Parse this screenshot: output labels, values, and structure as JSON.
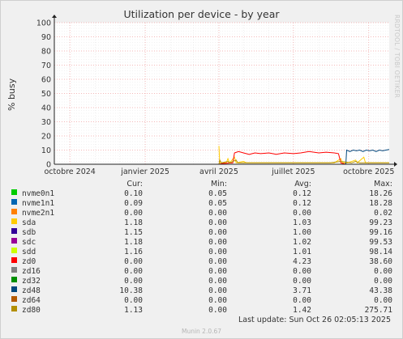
{
  "title": "Utilization per device - by year",
  "ylabel": "% busy",
  "watermark": "RRDTOOL / TOBI OETIKER",
  "footer": "Munin 2.0.67",
  "last_update": "Last update: Sun Oct 26 02:05:13 2025",
  "legend_headers": {
    "cur": "Cur:",
    "min": "Min:",
    "avg": "Avg:",
    "max": "Max:"
  },
  "chart_data": {
    "type": "line",
    "title": "Utilization per device - by year",
    "ylabel": "% busy",
    "xlabel": "",
    "ylim": [
      0,
      100
    ],
    "yticks": [
      0,
      10,
      20,
      30,
      40,
      50,
      60,
      70,
      80,
      90,
      100
    ],
    "xlim": [
      "2024-09-12",
      "2025-10-26"
    ],
    "xticks": [
      {
        "label": "octobre 2024",
        "date": "2024-10-01"
      },
      {
        "label": "janvier 2025",
        "date": "2025-01-01"
      },
      {
        "label": "avril 2025",
        "date": "2025-04-01"
      },
      {
        "label": "juillet 2025",
        "date": "2025-07-01"
      },
      {
        "label": "octobre 2025",
        "date": "2025-10-01"
      }
    ],
    "grid": true,
    "series": [
      {
        "name": "nvme0n1",
        "color": "#00cc00",
        "cur": "0.10",
        "min": "0.05",
        "avg": "0.12",
        "max": "18.26",
        "points": []
      },
      {
        "name": "nvme1n1",
        "color": "#0066b3",
        "cur": "0.09",
        "min": "0.05",
        "avg": "0.12",
        "max": "18.28",
        "points": []
      },
      {
        "name": "nvme2n1",
        "color": "#ff8000",
        "cur": "0.00",
        "min": "0.00",
        "avg": "0.00",
        "max": "0.02",
        "points": []
      },
      {
        "name": "sda",
        "color": "#ffcc00",
        "cur": "1.18",
        "min": "0.00",
        "avg": "1.03",
        "max": "99.23",
        "points": [
          [
            "2025-04-01",
            13
          ],
          [
            "2025-04-02",
            1
          ],
          [
            "2025-04-10",
            1
          ],
          [
            "2025-04-12",
            4
          ],
          [
            "2025-04-14",
            1
          ],
          [
            "2025-04-20",
            5
          ],
          [
            "2025-04-22",
            1
          ],
          [
            "2025-05-01",
            2
          ],
          [
            "2025-05-05",
            1
          ],
          [
            "2025-05-20",
            1
          ],
          [
            "2025-06-10",
            1
          ],
          [
            "2025-07-01",
            1
          ],
          [
            "2025-08-10",
            1
          ],
          [
            "2025-08-20",
            1
          ],
          [
            "2025-08-28",
            4
          ],
          [
            "2025-08-30",
            1
          ],
          [
            "2025-09-05",
            1
          ],
          [
            "2025-09-15",
            3
          ],
          [
            "2025-09-17",
            1
          ],
          [
            "2025-09-25",
            5
          ],
          [
            "2025-09-27",
            1
          ],
          [
            "2025-10-05",
            1
          ],
          [
            "2025-10-15",
            1
          ],
          [
            "2025-10-26",
            1
          ]
        ]
      },
      {
        "name": "sdb",
        "color": "#330099",
        "cur": "1.15",
        "min": "0.00",
        "avg": "1.00",
        "max": "99.16",
        "points": []
      },
      {
        "name": "sdc",
        "color": "#990099",
        "cur": "1.18",
        "min": "0.00",
        "avg": "1.02",
        "max": "99.53",
        "points": []
      },
      {
        "name": "sdd",
        "color": "#ccff00",
        "cur": "1.16",
        "min": "0.00",
        "avg": "1.01",
        "max": "98.14",
        "points": []
      },
      {
        "name": "zd0",
        "color": "#ff0000",
        "cur": "0.00",
        "min": "0.00",
        "avg": "4.23",
        "max": "38.60",
        "points": [
          [
            "2025-04-01",
            0
          ],
          [
            "2025-04-05",
            0.5
          ],
          [
            "2025-04-18",
            1
          ],
          [
            "2025-04-20",
            8
          ],
          [
            "2025-04-25",
            9
          ],
          [
            "2025-05-01",
            8
          ],
          [
            "2025-05-08",
            7
          ],
          [
            "2025-05-15",
            8
          ],
          [
            "2025-05-22",
            7.5
          ],
          [
            "2025-06-01",
            8
          ],
          [
            "2025-06-10",
            7
          ],
          [
            "2025-06-20",
            8
          ],
          [
            "2025-07-01",
            7.5
          ],
          [
            "2025-07-10",
            8
          ],
          [
            "2025-07-20",
            9
          ],
          [
            "2025-08-01",
            8
          ],
          [
            "2025-08-10",
            8.5
          ],
          [
            "2025-08-20",
            8
          ],
          [
            "2025-08-25",
            7.5
          ],
          [
            "2025-08-28",
            1
          ],
          [
            "2025-09-03",
            0
          ]
        ]
      },
      {
        "name": "zd16",
        "color": "#808080",
        "cur": "0.00",
        "min": "0.00",
        "avg": "0.00",
        "max": "0.00",
        "points": []
      },
      {
        "name": "zd32",
        "color": "#008f00",
        "cur": "0.00",
        "min": "0.00",
        "avg": "0.00",
        "max": "0.00",
        "points": []
      },
      {
        "name": "zd48",
        "color": "#00487d",
        "cur": "10.38",
        "min": "0.00",
        "avg": "3.71",
        "max": "43.38",
        "points": [
          [
            "2025-09-03",
            0
          ],
          [
            "2025-09-04",
            10
          ],
          [
            "2025-09-08",
            9
          ],
          [
            "2025-09-12",
            10
          ],
          [
            "2025-09-16",
            9.5
          ],
          [
            "2025-09-20",
            10
          ],
          [
            "2025-09-24",
            9
          ],
          [
            "2025-09-28",
            10
          ],
          [
            "2025-10-02",
            9.5
          ],
          [
            "2025-10-06",
            10
          ],
          [
            "2025-10-10",
            9
          ],
          [
            "2025-10-14",
            10
          ],
          [
            "2025-10-18",
            9.5
          ],
          [
            "2025-10-22",
            10
          ],
          [
            "2025-10-26",
            10.4
          ]
        ]
      },
      {
        "name": "zd64",
        "color": "#b35a00",
        "cur": "0.00",
        "min": "0.00",
        "avg": "0.00",
        "max": "0.00",
        "points": []
      },
      {
        "name": "zd80",
        "color": "#b38f00",
        "cur": "1.13",
        "min": "0.00",
        "avg": "1.42",
        "max": "275.71",
        "points": [
          [
            "2025-04-01",
            0
          ],
          [
            "2025-04-02",
            3
          ],
          [
            "2025-04-04",
            1
          ],
          [
            "2025-04-12",
            2
          ],
          [
            "2025-04-14",
            1
          ],
          [
            "2025-04-22",
            3
          ],
          [
            "2025-04-24",
            1
          ],
          [
            "2025-05-10",
            1
          ],
          [
            "2025-06-01",
            1
          ],
          [
            "2025-07-15",
            1
          ],
          [
            "2025-08-15",
            1
          ],
          [
            "2025-08-28",
            2
          ],
          [
            "2025-09-10",
            1
          ],
          [
            "2025-09-15",
            2
          ],
          [
            "2025-09-20",
            1
          ],
          [
            "2025-10-01",
            1
          ],
          [
            "2025-10-26",
            1
          ]
        ]
      }
    ]
  }
}
